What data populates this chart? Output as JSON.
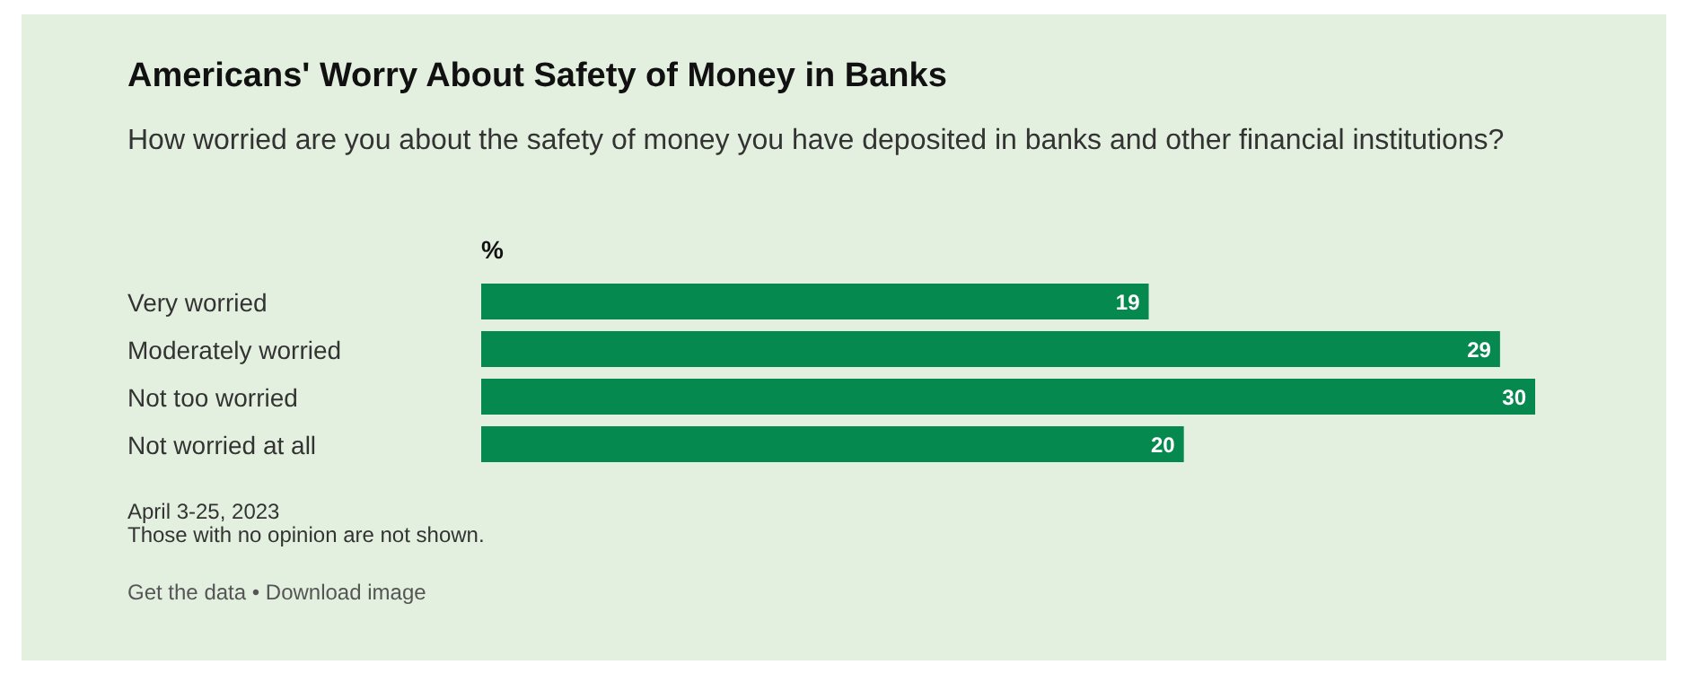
{
  "chart_data": {
    "type": "bar",
    "orientation": "horizontal",
    "title": "Americans' Worry About Safety of Money in Banks",
    "subtitle": "How worried are you about the safety of money you have deposited in banks and other financial institutions?",
    "xlabel": "%",
    "categories": [
      "Very worried",
      "Moderately worried",
      "Not too worried",
      "Not worried at all"
    ],
    "values": [
      19,
      29,
      30,
      20
    ],
    "color": "#06894f",
    "data_labels": true,
    "annotations": [
      "April 3-25, 2023",
      "Those with no opinion are not shown.",
      "Get the data • Download image"
    ]
  }
}
